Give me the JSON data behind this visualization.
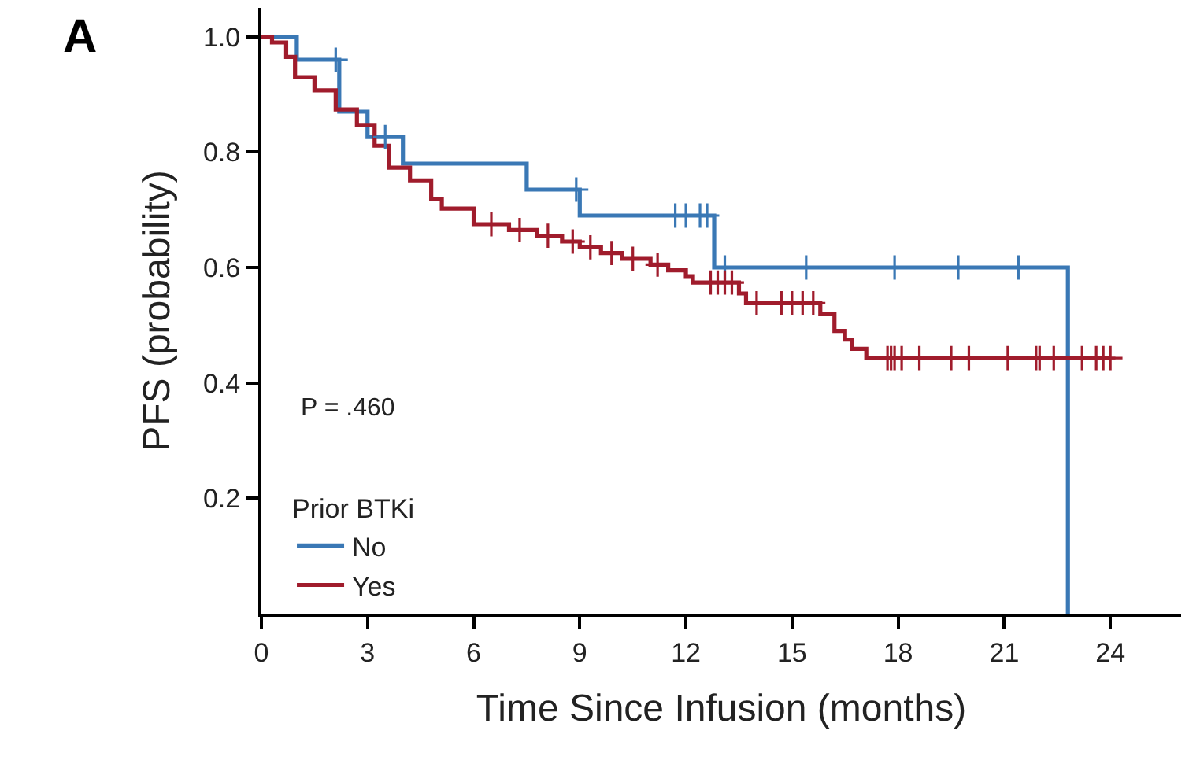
{
  "chart_data": {
    "type": "step",
    "xlabel": "Time Since Infusion (months)",
    "ylabel": "PFS (probability)",
    "legend_title": "Prior BTKi",
    "annotations": [
      "A",
      "P = .460"
    ],
    "xlim": [
      0,
      26
    ],
    "xticks": [
      0,
      3,
      6,
      9,
      12,
      15,
      18,
      21,
      24
    ],
    "ylim": [
      0,
      1.05
    ],
    "yticks": [
      {
        "value": 0.2,
        "label": "0.2"
      },
      {
        "value": 0.4,
        "label": "0.4"
      },
      {
        "value": 0.6,
        "label": "0.6"
      },
      {
        "value": 0.8,
        "label": "0.8"
      },
      {
        "value": 1.0,
        "label": "1.0"
      }
    ],
    "legend": "bottom left",
    "line_style": "solid",
    "series": [
      {
        "name": "No",
        "color": "#3a78b5",
        "x": [
          0,
          1.0,
          2.2,
          3.0,
          4.0,
          7.5,
          9.0,
          12.8,
          22.8
        ],
        "values": [
          1.0,
          0.96,
          0.87,
          0.826,
          0.78,
          0.735,
          0.69,
          0.6,
          0.0
        ]
      },
      {
        "name": "Yes",
        "color": "#a01c2c",
        "x": [
          0,
          0.3,
          0.7,
          0.95,
          1.5,
          2.1,
          2.7,
          3.2,
          3.6,
          4.2,
          4.8,
          5.1,
          6.0,
          7.0,
          7.8,
          8.5,
          9.0,
          9.6,
          10.2,
          11.0,
          11.5,
          12.0,
          12.2,
          13.5,
          13.7,
          15.8,
          16.2,
          16.5,
          16.7,
          17.1,
          24.0
        ],
        "values": [
          1.0,
          0.99,
          0.965,
          0.93,
          0.907,
          0.874,
          0.847,
          0.811,
          0.773,
          0.751,
          0.719,
          0.702,
          0.675,
          0.665,
          0.655,
          0.645,
          0.635,
          0.625,
          0.615,
          0.605,
          0.595,
          0.585,
          0.574,
          0.555,
          0.538,
          0.519,
          0.49,
          0.475,
          0.459,
          0.443,
          0.443
        ]
      },
      {
        "color": "#3a78b5",
        "type": "scatter",
        "marker": "cross",
        "x": [
          2.1,
          3.5,
          8.9,
          11.7,
          12.0,
          12.4,
          12.6,
          13.1,
          15.4,
          17.9,
          19.7,
          21.4
        ],
        "values": [
          0.96,
          0.826,
          0.735,
          0.69,
          0.69,
          0.69,
          0.69,
          0.6,
          0.6,
          0.6,
          0.6,
          0.6
        ]
      },
      {
        "color": "#a01c2c",
        "type": "scatter",
        "marker": "cross",
        "x": [
          6.5,
          7.3,
          8.1,
          8.8,
          9.3,
          9.9,
          10.5,
          11.2,
          12.7,
          12.9,
          13.1,
          13.3,
          14.0,
          14.7,
          15.0,
          15.3,
          15.6,
          17.7,
          17.8,
          17.9,
          18.1,
          18.6,
          19.5,
          20.0,
          21.1,
          21.9,
          22.0,
          22.4,
          23.2,
          23.6,
          23.8,
          24.0
        ],
        "values": [
          0.675,
          0.665,
          0.655,
          0.645,
          0.635,
          0.625,
          0.615,
          0.605,
          0.574,
          0.574,
          0.574,
          0.574,
          0.538,
          0.538,
          0.538,
          0.538,
          0.538,
          0.443,
          0.443,
          0.443,
          0.443,
          0.443,
          0.443,
          0.443,
          0.443,
          0.443,
          0.443,
          0.443,
          0.443,
          0.443,
          0.443,
          0.443
        ]
      }
    ]
  }
}
